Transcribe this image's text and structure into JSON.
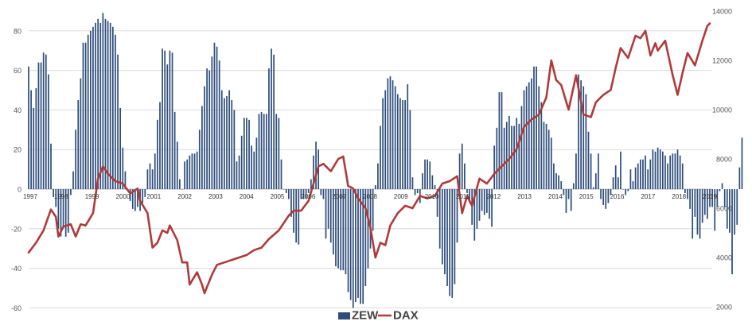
{
  "colors": {
    "zew_bar": "#2e4d7b",
    "dax_line": "#b03a3a",
    "grid": "#dcdcdc",
    "axis_text": "#555555",
    "legend_text": "#444444"
  },
  "legend": {
    "zew": "ZEW",
    "dax": "DAX"
  },
  "chart_data": {
    "type": "bar",
    "title": "",
    "legend_position": "bottom",
    "grid": true,
    "x_tick_labels": [
      "1997",
      "1998",
      "1999",
      "2000",
      "2001",
      "2002",
      "2003",
      "2004",
      "2005",
      "2006",
      "2007",
      "2008",
      "2009",
      "2010",
      "2011",
      "2012",
      "2013",
      "2014",
      "2015",
      "2016",
      "2017",
      "2018",
      "2019"
    ],
    "left_axis": {
      "ylim": [
        -60,
        90
      ],
      "ticks": [
        80,
        60,
        40,
        20,
        0,
        -20,
        -40,
        -60
      ]
    },
    "right_axis": {
      "ylim": [
        2000,
        14000
      ],
      "ticks": [
        14000,
        12000,
        10000,
        8000,
        6000,
        4000,
        2000
      ]
    },
    "series": [
      {
        "name": "ZEW",
        "type": "bar",
        "axis": "left",
        "x_start": "1997-01",
        "interval": "month",
        "values": [
          62,
          50,
          41,
          51,
          64,
          64,
          69,
          68,
          58,
          23,
          -4,
          -9,
          -20,
          -24,
          -19,
          -24,
          -22,
          -3,
          9,
          30,
          45,
          56,
          74,
          74,
          78,
          80,
          82,
          84,
          86,
          84,
          89,
          86,
          85,
          84,
          82,
          78,
          68,
          41,
          21,
          9,
          -1,
          -6,
          -10,
          -11,
          -9,
          -11,
          -7,
          -4,
          10,
          13,
          10,
          18,
          35,
          44,
          71,
          70,
          63,
          70,
          69,
          39,
          24,
          5,
          0,
          14,
          15,
          17,
          18,
          18,
          19,
          30,
          42,
          52,
          61,
          60,
          67,
          74,
          72,
          65,
          50,
          46,
          47,
          50,
          45,
          40,
          14,
          17,
          27,
          36,
          36,
          35,
          22,
          19,
          26,
          38,
          39,
          38,
          38,
          61,
          71,
          68,
          38,
          36,
          15,
          0,
          -2,
          -5,
          -14,
          -22,
          -27,
          -28,
          -5,
          -5,
          -5,
          -2,
          5,
          17,
          24,
          20,
          -3,
          -5,
          -25,
          -20,
          -27,
          -33,
          -39,
          -40,
          -41,
          -41,
          -43,
          -52,
          -56,
          -60,
          -57,
          -55,
          -58,
          -58,
          -49,
          -40,
          -30,
          -21,
          2,
          13,
          32,
          46,
          50,
          56,
          57,
          55,
          52,
          48,
          46,
          45,
          45,
          53,
          40,
          6,
          -3,
          -2,
          -7,
          8,
          15,
          15,
          14,
          7,
          2,
          -14,
          -30,
          -38,
          -43,
          -49,
          -54,
          -55,
          -48,
          -27,
          18,
          23,
          13,
          -2,
          -7,
          -18,
          -26,
          -20,
          -16,
          -11,
          -13,
          -12,
          -15,
          -19,
          22,
          31,
          49,
          49,
          31,
          34,
          37,
          32,
          32,
          36,
          33,
          42,
          50,
          52,
          54,
          56,
          62,
          62,
          52,
          44,
          34,
          33,
          30,
          26,
          13,
          8,
          7,
          4,
          -3,
          -12,
          -5,
          -11,
          3,
          18,
          58,
          55,
          52,
          48,
          29,
          18,
          1,
          8,
          18,
          -5,
          -8,
          -10,
          -7,
          -3,
          6,
          12,
          6,
          19,
          0,
          -3,
          -1,
          10,
          4,
          11,
          13,
          15,
          15,
          17,
          10,
          15,
          20,
          19,
          21,
          20,
          19,
          17,
          13,
          17,
          18,
          18,
          20,
          17,
          13,
          -2,
          -5,
          -10,
          -25,
          -14,
          -23,
          -25,
          -17,
          -13,
          -15,
          -9,
          -9,
          -21,
          -9,
          -1,
          3,
          -9,
          -20,
          -22,
          -43,
          -23,
          -18,
          11,
          26
        ]
      },
      {
        "name": "DAX",
        "type": "line",
        "axis": "right",
        "points": [
          [
            "1997-01",
            4200
          ],
          [
            "1997-04",
            4600
          ],
          [
            "1997-07",
            5100
          ],
          [
            "1997-10",
            5950
          ],
          [
            "1997-12",
            5650
          ],
          [
            "1998-01",
            4850
          ],
          [
            "1998-03",
            5250
          ],
          [
            "1998-06",
            5350
          ],
          [
            "1998-08",
            4850
          ],
          [
            "1998-10",
            5350
          ],
          [
            "1998-12",
            5300
          ],
          [
            "1999-03",
            5800
          ],
          [
            "1999-05",
            7200
          ],
          [
            "1999-07",
            7700
          ],
          [
            "1999-09",
            7400
          ],
          [
            "1999-12",
            7100
          ],
          [
            "2000-03",
            7000
          ],
          [
            "2000-06",
            6600
          ],
          [
            "2000-09",
            6800
          ],
          [
            "2000-10",
            6300
          ],
          [
            "2001-01",
            5800
          ],
          [
            "2001-03",
            4400
          ],
          [
            "2001-05",
            4600
          ],
          [
            "2001-07",
            5100
          ],
          [
            "2001-09",
            5000
          ],
          [
            "2001-10",
            5300
          ],
          [
            "2002-01",
            4700
          ],
          [
            "2002-03",
            3800
          ],
          [
            "2002-05",
            3800
          ],
          [
            "2002-06",
            2900
          ],
          [
            "2002-09",
            3400
          ],
          [
            "2002-11",
            2900
          ],
          [
            "2002-12",
            2550
          ],
          [
            "2003-03",
            3300
          ],
          [
            "2003-05",
            3700
          ],
          [
            "2003-08",
            3800
          ],
          [
            "2003-11",
            3900
          ],
          [
            "2004-02",
            4000
          ],
          [
            "2004-05",
            4100
          ],
          [
            "2004-08",
            4300
          ],
          [
            "2004-11",
            4400
          ],
          [
            "2005-02",
            4750
          ],
          [
            "2005-06",
            5100
          ],
          [
            "2005-10",
            5700
          ],
          [
            "2005-12",
            5900
          ],
          [
            "2006-03",
            5900
          ],
          [
            "2006-06",
            6300
          ],
          [
            "2006-08",
            7000
          ],
          [
            "2006-10",
            7700
          ],
          [
            "2006-12",
            7800
          ],
          [
            "2007-03",
            7500
          ],
          [
            "2007-06",
            8000
          ],
          [
            "2007-08",
            8100
          ],
          [
            "2007-10",
            6900
          ],
          [
            "2007-12",
            6800
          ],
          [
            "2008-02",
            6400
          ],
          [
            "2008-05",
            6000
          ],
          [
            "2008-07",
            5200
          ],
          [
            "2008-09",
            4000
          ],
          [
            "2008-11",
            4600
          ],
          [
            "2009-01",
            4500
          ],
          [
            "2009-03",
            5300
          ],
          [
            "2009-06",
            5800
          ],
          [
            "2009-09",
            6100
          ],
          [
            "2009-12",
            6000
          ],
          [
            "2010-03",
            6500
          ],
          [
            "2010-06",
            6400
          ],
          [
            "2010-09",
            6500
          ],
          [
            "2010-12",
            7000
          ],
          [
            "2011-03",
            7100
          ],
          [
            "2011-06",
            7300
          ],
          [
            "2011-08",
            5800
          ],
          [
            "2011-10",
            6500
          ],
          [
            "2011-12",
            6100
          ],
          [
            "2012-03",
            7200
          ],
          [
            "2012-06",
            7000
          ],
          [
            "2012-09",
            7400
          ],
          [
            "2012-12",
            7700
          ],
          [
            "2013-03",
            8000
          ],
          [
            "2013-06",
            8400
          ],
          [
            "2013-09",
            9300
          ],
          [
            "2013-12",
            9600
          ],
          [
            "2014-03",
            9800
          ],
          [
            "2014-06",
            10500
          ],
          [
            "2014-08",
            12000
          ],
          [
            "2014-10",
            11200
          ],
          [
            "2014-12",
            11000
          ],
          [
            "2015-03",
            10000
          ],
          [
            "2015-06",
            11400
          ],
          [
            "2015-09",
            9800
          ],
          [
            "2015-12",
            9700
          ],
          [
            "2016-02",
            10300
          ],
          [
            "2016-05",
            10600
          ],
          [
            "2016-08",
            10800
          ],
          [
            "2016-10",
            11700
          ],
          [
            "2016-12",
            12500
          ],
          [
            "2017-03",
            12100
          ],
          [
            "2017-06",
            13000
          ],
          [
            "2017-08",
            12900
          ],
          [
            "2017-10",
            13200
          ],
          [
            "2017-12",
            12200
          ],
          [
            "2018-02",
            12700
          ],
          [
            "2018-03",
            12400
          ],
          [
            "2018-06",
            12800
          ],
          [
            "2018-09",
            11400
          ],
          [
            "2018-11",
            10600
          ],
          [
            "2019-01",
            11500
          ],
          [
            "2019-03",
            12300
          ],
          [
            "2019-06",
            11800
          ],
          [
            "2019-09",
            12800
          ],
          [
            "2019-11",
            13400
          ],
          [
            "2019-12",
            13500
          ]
        ]
      }
    ]
  }
}
